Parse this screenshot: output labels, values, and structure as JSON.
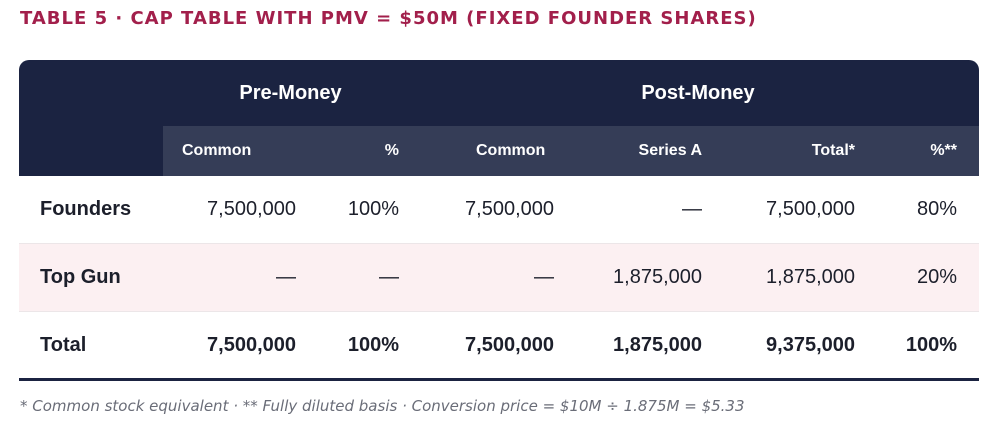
{
  "title": "TABLE 5 · CAP TABLE WITH PMV = $50M (FIXED FOUNDER SHARES)",
  "header": {
    "groups": [
      "Pre-Money",
      "Post-Money"
    ],
    "columns": [
      "Common",
      "%",
      "Common",
      "Series A",
      "Total*",
      "%**"
    ]
  },
  "rows": [
    {
      "label": "Founders",
      "cells": [
        "7,500,000",
        "100%",
        "7,500,000",
        "—",
        "7,500,000",
        "80%"
      ]
    },
    {
      "label": "Top Gun",
      "cells": [
        "—",
        "—",
        "—",
        "1,875,000",
        "1,875,000",
        "20%"
      ]
    },
    {
      "label": "Total",
      "cells": [
        "7,500,000",
        "100%",
        "7,500,000",
        "1,875,000",
        "9,375,000",
        "100%"
      ]
    }
  ],
  "footnote": "* Common stock equivalent · ** Fully diluted basis · Conversion price = $10M ÷ 1.875M = $5.33",
  "colors": {
    "title": "#a21f4b",
    "header_dark": "#1b2341",
    "header_sub": "#353d57",
    "alt_row": "#fcf0f2"
  }
}
